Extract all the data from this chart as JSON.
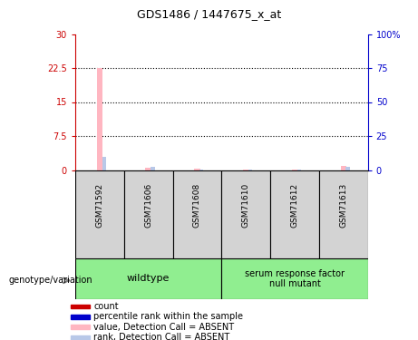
{
  "title": "GDS1486 / 1447675_x_at",
  "samples": [
    "GSM71592",
    "GSM71606",
    "GSM71608",
    "GSM71610",
    "GSM71612",
    "GSM71613"
  ],
  "groups": [
    {
      "name": "wildtype",
      "indices": [
        0,
        1,
        2
      ],
      "color": "#90EE90"
    },
    {
      "name": "serum response factor\nnull mutant",
      "indices": [
        3,
        4,
        5
      ],
      "color": "#90EE90"
    }
  ],
  "value_bars": [
    22.5,
    0.5,
    0.3,
    0.2,
    0.2,
    1.0
  ],
  "rank_bars": [
    3.0,
    0.8,
    0.2,
    0.2,
    0.2,
    0.8
  ],
  "absent_value_color": "#FFB6C1",
  "absent_rank_color": "#B8C8E8",
  "ylim_left": [
    0,
    30
  ],
  "ylim_right": [
    0,
    100
  ],
  "yticks_left": [
    0,
    7.5,
    15,
    22.5,
    30
  ],
  "yticks_right": [
    0,
    25,
    50,
    75,
    100
  ],
  "ytick_labels_left": [
    "0",
    "7.5",
    "15",
    "22.5",
    "30"
  ],
  "ytick_labels_right": [
    "0",
    "25",
    "50",
    "75",
    "100%"
  ],
  "left_axis_color": "#CC0000",
  "right_axis_color": "#0000CC",
  "sample_box_color": "#D3D3D3",
  "legend_items": [
    {
      "color": "#CC0000",
      "label": "count"
    },
    {
      "color": "#0000CC",
      "label": "percentile rank within the sample"
    },
    {
      "color": "#FFB6C1",
      "label": "value, Detection Call = ABSENT"
    },
    {
      "color": "#B8C8E8",
      "label": "rank, Detection Call = ABSENT"
    }
  ],
  "genotype_label": "genotype/variation"
}
